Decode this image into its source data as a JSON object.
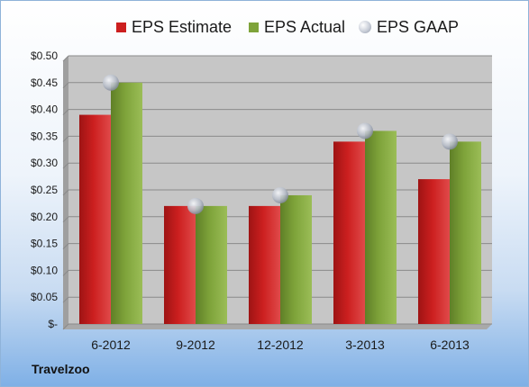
{
  "brand": "Travelzoo",
  "chart_data": {
    "type": "bar",
    "categories": [
      "6-2012",
      "9-2012",
      "12-2012",
      "3-2013",
      "6-2013"
    ],
    "series": [
      {
        "name": "EPS Estimate",
        "kind": "bar",
        "color": "#cc1f1f",
        "values": [
          0.39,
          0.22,
          0.22,
          0.34,
          0.27
        ]
      },
      {
        "name": "EPS Actual",
        "kind": "bar",
        "color": "#7ea33a",
        "values": [
          0.45,
          0.22,
          0.24,
          0.36,
          0.34
        ]
      },
      {
        "name": "EPS GAAP",
        "kind": "marker",
        "color": "#b8bec9",
        "values": [
          0.45,
          0.22,
          0.24,
          0.36,
          0.34
        ]
      }
    ],
    "ylim": [
      0,
      0.5
    ],
    "yticks": [
      0,
      0.05,
      0.1,
      0.15,
      0.2,
      0.25,
      0.3,
      0.35,
      0.4,
      0.45,
      0.5
    ],
    "ytick_labels": [
      "$-",
      "$0.05",
      "$0.10",
      "$0.15",
      "$0.20",
      "$0.25",
      "$0.30",
      "$0.35",
      "$0.40",
      "$0.45",
      "$0.50"
    ],
    "grid": true,
    "legend_position": "top",
    "plot_background": "#c6c6c6"
  }
}
